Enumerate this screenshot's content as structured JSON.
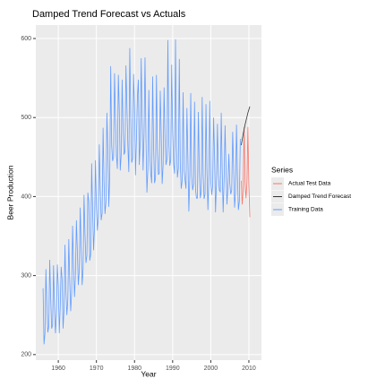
{
  "chart_data": {
    "type": "line",
    "title": "Damped Trend Forecast vs Actuals",
    "x_label": "Year",
    "y_label": "Beer Production",
    "legend_title": "Series",
    "legend_position": "right",
    "grid": true,
    "xlim": [
      1954.1,
      2013.3
    ],
    "ylim": [
      193,
      617
    ],
    "xticks": [
      1960,
      1970,
      1980,
      1990,
      2000,
      2010
    ],
    "yticks": [
      200,
      300,
      400,
      500,
      600
    ],
    "series": [
      {
        "name": "Actual Test Data",
        "color": "#F8766D",
        "x": [
          2008,
          2008.25,
          2008.5,
          2008.75,
          2009,
          2009.25,
          2009.5,
          2009.75,
          2010,
          2010.25
        ],
        "values": [
          420,
          390,
          410,
          488,
          415,
          398,
          419,
          488,
          414,
          374
        ]
      },
      {
        "name": "Damped Trend Forecast",
        "color": "#333333",
        "x": [
          2008,
          2008.25,
          2008.5,
          2008.75,
          2009,
          2009.25,
          2009.5,
          2009.75,
          2010,
          2010.25
        ],
        "values": [
          465,
          472,
          479,
          485,
          491,
          496,
          501,
          506,
          510,
          514
        ]
      },
      {
        "name": "Training Data",
        "color": "#619CFF",
        "x": [
          1956,
          1956.25,
          1956.5,
          1956.75,
          1957,
          1957.25,
          1957.5,
          1957.75,
          1958,
          1958.25,
          1958.5,
          1958.75,
          1959,
          1959.25,
          1959.5,
          1959.75,
          1960,
          1960.25,
          1960.5,
          1960.75,
          1961,
          1961.25,
          1961.5,
          1961.75,
          1962,
          1962.25,
          1962.5,
          1962.75,
          1963,
          1963.25,
          1963.5,
          1963.75,
          1964,
          1964.25,
          1964.5,
          1964.75,
          1965,
          1965.25,
          1965.5,
          1965.75,
          1966,
          1966.25,
          1966.5,
          1966.75,
          1967,
          1967.25,
          1967.5,
          1967.75,
          1968,
          1968.25,
          1968.5,
          1968.75,
          1969,
          1969.25,
          1969.5,
          1969.75,
          1970,
          1970.25,
          1970.5,
          1970.75,
          1971,
          1971.25,
          1971.5,
          1971.75,
          1972,
          1972.25,
          1972.5,
          1972.75,
          1973,
          1973.25,
          1973.5,
          1973.75,
          1974,
          1974.25,
          1974.5,
          1974.75,
          1975,
          1975.25,
          1975.5,
          1975.75,
          1976,
          1976.25,
          1976.5,
          1976.75,
          1977,
          1977.25,
          1977.5,
          1977.75,
          1978,
          1978.25,
          1978.5,
          1978.75,
          1979,
          1979.25,
          1979.5,
          1979.75,
          1980,
          1980.25,
          1980.5,
          1980.75,
          1981,
          1981.25,
          1981.5,
          1981.75,
          1982,
          1982.25,
          1982.5,
          1982.75,
          1983,
          1983.25,
          1983.5,
          1983.75,
          1984,
          1984.25,
          1984.5,
          1984.75,
          1985,
          1985.25,
          1985.5,
          1985.75,
          1986,
          1986.25,
          1986.5,
          1986.75,
          1987,
          1987.25,
          1987.5,
          1987.75,
          1988,
          1988.25,
          1988.5,
          1988.75,
          1989,
          1989.25,
          1989.5,
          1989.75,
          1990,
          1990.25,
          1990.5,
          1990.75,
          1991,
          1991.25,
          1991.5,
          1991.75,
          1992,
          1992.25,
          1992.5,
          1992.75,
          1993,
          1993.25,
          1993.5,
          1993.75,
          1994,
          1994.25,
          1994.5,
          1994.75,
          1995,
          1995.25,
          1995.5,
          1995.75,
          1996,
          1996.25,
          1996.5,
          1996.75,
          1997,
          1997.25,
          1997.5,
          1997.75,
          1998,
          1998.25,
          1998.5,
          1998.75,
          1999,
          1999.25,
          1999.5,
          1999.75,
          2000,
          2000.25,
          2000.5,
          2000.75,
          2001,
          2001.25,
          2001.5,
          2001.75,
          2002,
          2002.25,
          2002.5,
          2002.75,
          2003,
          2003.25,
          2003.5,
          2003.75,
          2004,
          2004.25,
          2004.5,
          2004.75,
          2005,
          2005.25,
          2005.5,
          2005.75,
          2006,
          2006.25,
          2006.5,
          2006.75,
          2007,
          2007.25,
          2007.5,
          2007.75
        ],
        "values": [
          284,
          213,
          227,
          308,
          262,
          228,
          236,
          320,
          272,
          233,
          237,
          313,
          261,
          227,
          250,
          314,
          286,
          227,
          260,
          311,
          295,
          233,
          257,
          339,
          279,
          250,
          270,
          346,
          294,
          255,
          278,
          363,
          313,
          273,
          300,
          370,
          331,
          288,
          306,
          386,
          335,
          288,
          308,
          402,
          353,
          316,
          325,
          405,
          393,
          319,
          327,
          442,
          383,
          332,
          361,
          446,
          387,
          357,
          374,
          466,
          410,
          370,
          379,
          487,
          419,
          378,
          393,
          506,
          458,
          387,
          427,
          565,
          465,
          445,
          450,
          556,
          500,
          452,
          435,
          554,
          510,
          433,
          453,
          548,
          486,
          453,
          457,
          566,
          515,
          464,
          431,
          588,
          503,
          443,
          448,
          555,
          513,
          427,
          473,
          526,
          548,
          440,
          469,
          575,
          493,
          433,
          480,
          576,
          475,
          405,
          435,
          535,
          453,
          430,
          417,
          552,
          464,
          417,
          423,
          554,
          459,
          428,
          429,
          534,
          481,
          416,
          440,
          538,
          474,
          440,
          447,
          598,
          467,
          439,
          446,
          567,
          485,
          441,
          429,
          599,
          464,
          424,
          436,
          574,
          443,
          410,
          420,
          532,
          433,
          421,
          410,
          512,
          449,
          381,
          423,
          531,
          426,
          408,
          416,
          520,
          409,
          398,
          398,
          507,
          432,
          398,
          406,
          526,
          428,
          397,
          403,
          517,
          435,
          383,
          424,
          521,
          421,
          402,
          414,
          500,
          451,
          380,
          416,
          492,
          428,
          408,
          406,
          506,
          435,
          380,
          421,
          490,
          435,
          390,
          412,
          454,
          416,
          403,
          408,
          482,
          438,
          386,
          405,
          491,
          427,
          383,
          394,
          473
        ]
      }
    ]
  }
}
